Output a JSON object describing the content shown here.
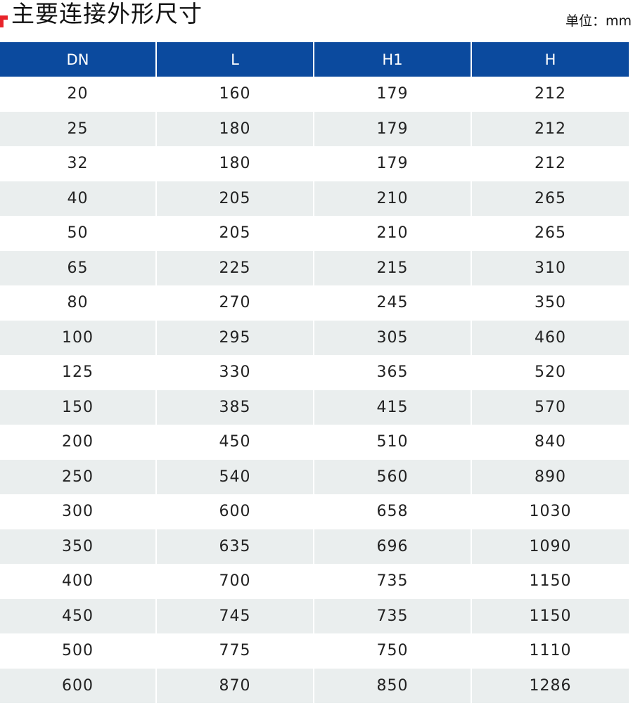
{
  "colors": {
    "header_bg": "#0b4a9e",
    "accent_marker": "#e8232a",
    "shaded_row": "#eaeeee"
  },
  "header": {
    "title": "主要连接外形尺寸",
    "unit": "单位：mm"
  },
  "table": {
    "columns": [
      "DN",
      "L",
      "H1",
      "H"
    ],
    "rows": [
      [
        "20",
        "160",
        "179",
        "212"
      ],
      [
        "25",
        "180",
        "179",
        "212"
      ],
      [
        "32",
        "180",
        "179",
        "212"
      ],
      [
        "40",
        "205",
        "210",
        "265"
      ],
      [
        "50",
        "205",
        "210",
        "265"
      ],
      [
        "65",
        "225",
        "215",
        "310"
      ],
      [
        "80",
        "270",
        "245",
        "350"
      ],
      [
        "100",
        "295",
        "305",
        "460"
      ],
      [
        "125",
        "330",
        "365",
        "520"
      ],
      [
        "150",
        "385",
        "415",
        "570"
      ],
      [
        "200",
        "450",
        "510",
        "840"
      ],
      [
        "250",
        "540",
        "560",
        "890"
      ],
      [
        "300",
        "600",
        "658",
        "1030"
      ],
      [
        "350",
        "635",
        "696",
        "1090"
      ],
      [
        "400",
        "700",
        "735",
        "1150"
      ],
      [
        "450",
        "745",
        "735",
        "1150"
      ],
      [
        "500",
        "775",
        "750",
        "1110"
      ],
      [
        "600",
        "870",
        "850",
        "1286"
      ]
    ]
  }
}
